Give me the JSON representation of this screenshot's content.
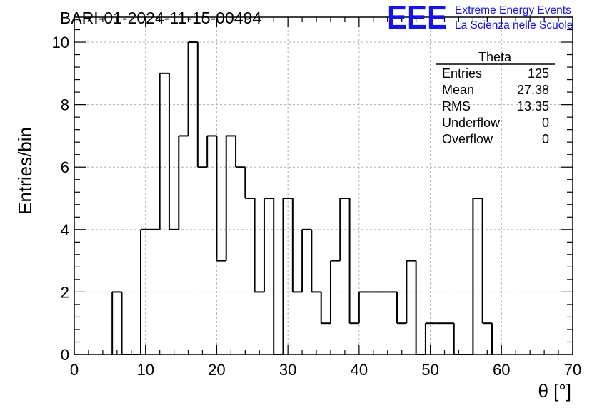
{
  "chart_data": {
    "type": "bar",
    "style": "step-histogram",
    "title": "BARI-01-2024-11-15-00494",
    "xlabel": "θ [°]",
    "ylabel": "Entries/bin",
    "xlim": [
      0,
      70
    ],
    "ylim": [
      0,
      10.8
    ],
    "xticks": [
      0,
      10,
      20,
      30,
      40,
      50,
      60,
      70
    ],
    "yticks": [
      0,
      2,
      4,
      6,
      8,
      10
    ],
    "grid": true,
    "bin_width": 1.3333,
    "bins": [
      {
        "x0": 5.33,
        "x1": 6.67,
        "value": 2
      },
      {
        "x0": 6.67,
        "x1": 8.0,
        "value": 0
      },
      {
        "x0": 8.0,
        "x1": 9.33,
        "value": 0
      },
      {
        "x0": 9.33,
        "x1": 10.67,
        "value": 4
      },
      {
        "x0": 10.67,
        "x1": 12.0,
        "value": 4
      },
      {
        "x0": 12.0,
        "x1": 13.33,
        "value": 9
      },
      {
        "x0": 13.33,
        "x1": 14.67,
        "value": 4
      },
      {
        "x0": 14.67,
        "x1": 16.0,
        "value": 7
      },
      {
        "x0": 16.0,
        "x1": 17.33,
        "value": 10
      },
      {
        "x0": 17.33,
        "x1": 18.67,
        "value": 6
      },
      {
        "x0": 18.67,
        "x1": 20.0,
        "value": 7
      },
      {
        "x0": 20.0,
        "x1": 21.33,
        "value": 3
      },
      {
        "x0": 21.33,
        "x1": 22.67,
        "value": 7
      },
      {
        "x0": 22.67,
        "x1": 24.0,
        "value": 6
      },
      {
        "x0": 24.0,
        "x1": 25.33,
        "value": 5
      },
      {
        "x0": 25.33,
        "x1": 26.67,
        "value": 2
      },
      {
        "x0": 26.67,
        "x1": 28.0,
        "value": 5
      },
      {
        "x0": 28.0,
        "x1": 29.33,
        "value": 0
      },
      {
        "x0": 29.33,
        "x1": 30.67,
        "value": 5
      },
      {
        "x0": 30.67,
        "x1": 32.0,
        "value": 2
      },
      {
        "x0": 32.0,
        "x1": 33.33,
        "value": 4
      },
      {
        "x0": 33.33,
        "x1": 34.67,
        "value": 2
      },
      {
        "x0": 34.67,
        "x1": 36.0,
        "value": 1
      },
      {
        "x0": 36.0,
        "x1": 37.33,
        "value": 3
      },
      {
        "x0": 37.33,
        "x1": 38.67,
        "value": 5
      },
      {
        "x0": 38.67,
        "x1": 40.0,
        "value": 1
      },
      {
        "x0": 40.0,
        "x1": 41.33,
        "value": 2
      },
      {
        "x0": 41.33,
        "x1": 42.67,
        "value": 2
      },
      {
        "x0": 42.67,
        "x1": 44.0,
        "value": 2
      },
      {
        "x0": 44.0,
        "x1": 45.33,
        "value": 2
      },
      {
        "x0": 45.33,
        "x1": 46.67,
        "value": 1
      },
      {
        "x0": 46.67,
        "x1": 48.0,
        "value": 3
      },
      {
        "x0": 48.0,
        "x1": 49.33,
        "value": 0
      },
      {
        "x0": 49.33,
        "x1": 50.67,
        "value": 1
      },
      {
        "x0": 50.67,
        "x1": 52.0,
        "value": 1
      },
      {
        "x0": 52.0,
        "x1": 53.33,
        "value": 1
      },
      {
        "x0": 53.33,
        "x1": 54.67,
        "value": 0
      },
      {
        "x0": 54.67,
        "x1": 56.0,
        "value": 0
      },
      {
        "x0": 56.0,
        "x1": 57.33,
        "value": 5
      },
      {
        "x0": 57.33,
        "x1": 58.67,
        "value": 1
      }
    ],
    "stats_box": {
      "title": "Theta",
      "placement": "top-right",
      "rows": [
        {
          "label": "Entries",
          "value": "125"
        },
        {
          "label": "Mean",
          "value": "27.38"
        },
        {
          "label": "RMS",
          "value": "13.35"
        },
        {
          "label": "Underflow",
          "value": "0"
        },
        {
          "label": "Overflow",
          "value": "0"
        }
      ]
    },
    "colors": {
      "line": "#000000",
      "grid": "#b0b0b0",
      "logo": "#1414e6"
    }
  },
  "logo": {
    "mark": "EEE",
    "line1": "Extreme Energy Events",
    "line2": "La Scienza nelle Scuole"
  }
}
